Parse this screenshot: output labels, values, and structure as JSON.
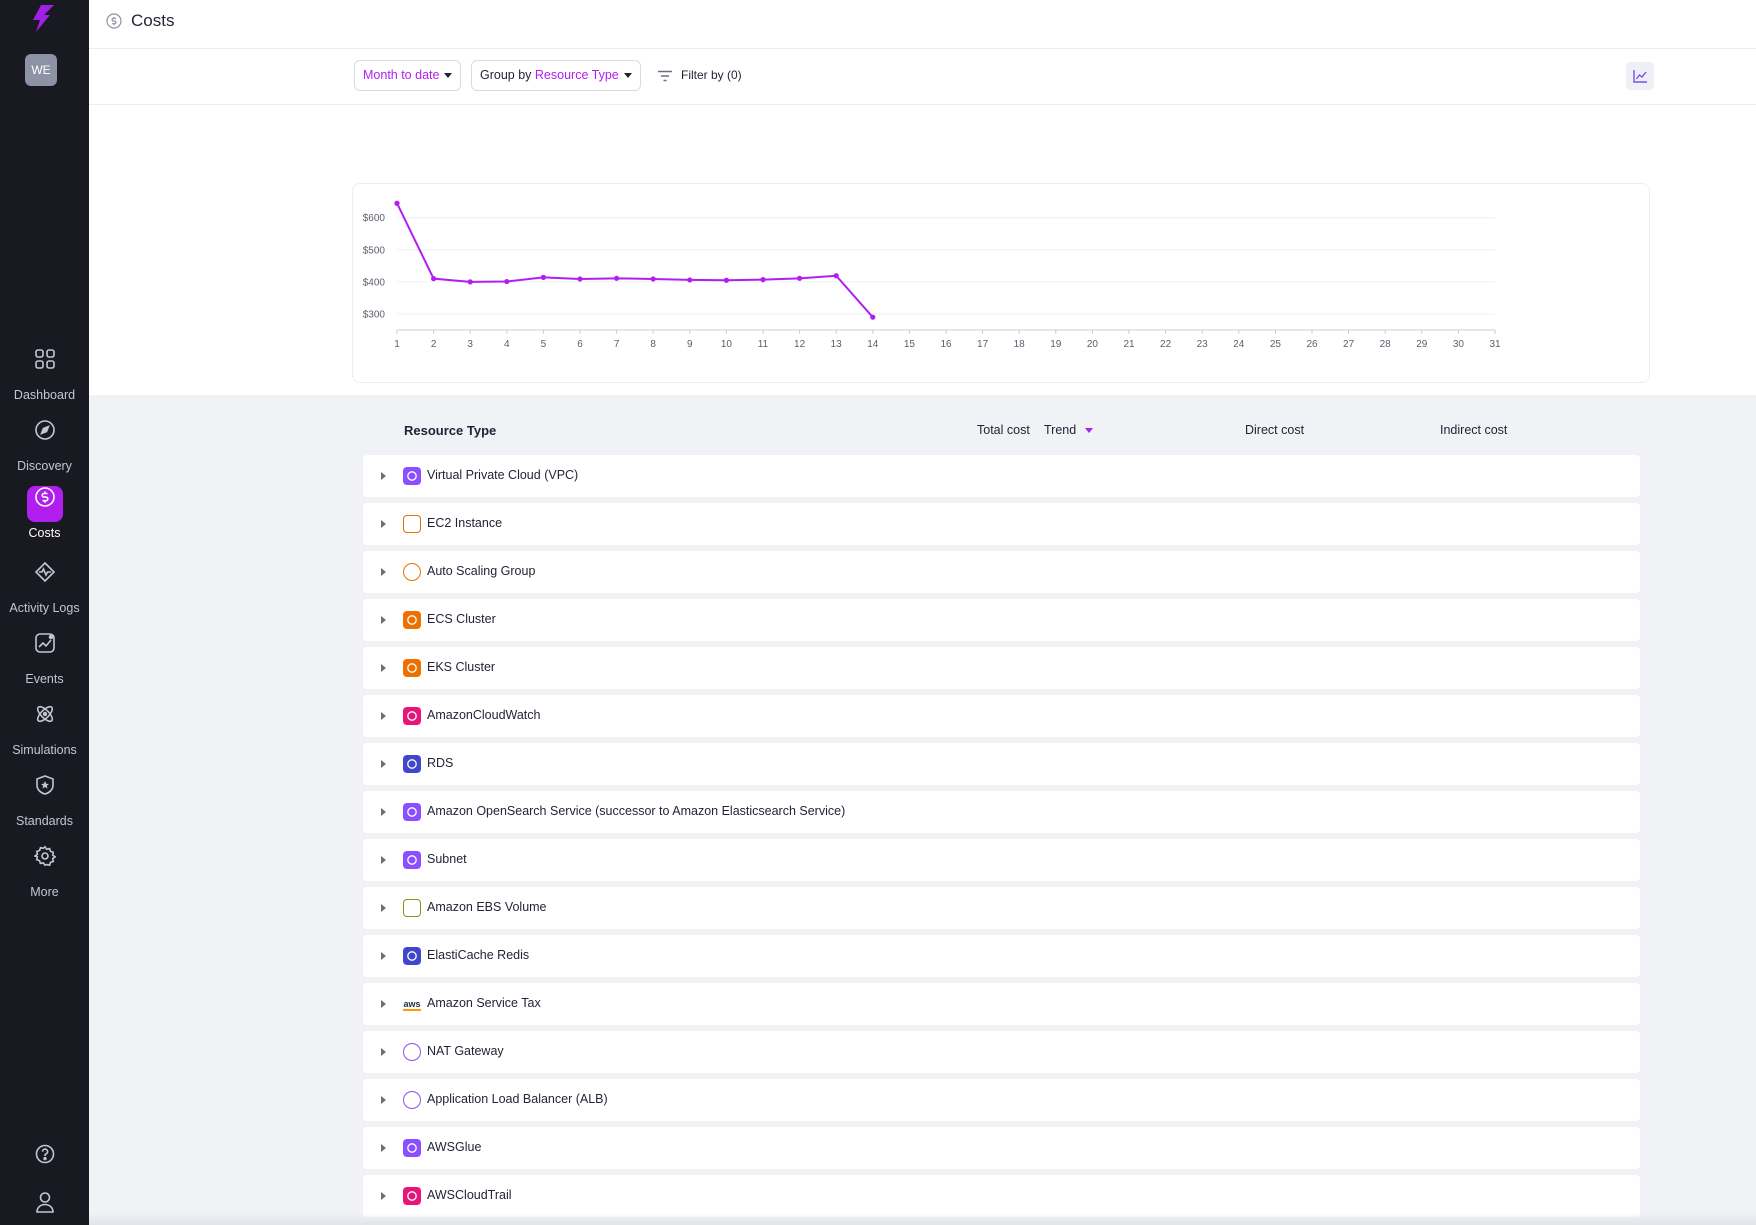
{
  "sidebar": {
    "avatar": "WE",
    "nav": [
      {
        "label": "Dashboard",
        "icon": "dashboard-icon"
      },
      {
        "label": "Discovery",
        "icon": "compass-icon"
      },
      {
        "label": "Costs",
        "icon": "dollar-icon",
        "active": true
      },
      {
        "label": "Activity Logs",
        "icon": "activity-icon"
      },
      {
        "label": "Events",
        "icon": "events-icon"
      },
      {
        "label": "Simulations",
        "icon": "atom-icon"
      },
      {
        "label": "Standards",
        "icon": "shield-icon"
      },
      {
        "label": "More",
        "icon": "gear-icon"
      }
    ]
  },
  "header": {
    "title": "Costs"
  },
  "toolbar": {
    "date_range": "Month to date",
    "group_by_prefix": "Group by",
    "group_by_value": "Resource Type",
    "filter_label": "Filter by (0)"
  },
  "chart_data": {
    "type": "line",
    "x": [
      1,
      2,
      3,
      4,
      5,
      6,
      7,
      8,
      9,
      10,
      11,
      12,
      13,
      14
    ],
    "y": [
      645,
      410,
      400,
      401,
      414,
      409,
      411,
      409,
      406,
      405,
      407,
      411,
      419,
      290
    ],
    "x_ticks": [
      1,
      2,
      3,
      4,
      5,
      6,
      7,
      8,
      9,
      10,
      11,
      12,
      13,
      14,
      15,
      16,
      17,
      18,
      19,
      20,
      21,
      22,
      23,
      24,
      25,
      26,
      27,
      28,
      29,
      30,
      31
    ],
    "y_ticks": [
      "$300",
      "$400",
      "$500",
      "$600"
    ],
    "y_tick_values": [
      300,
      400,
      500,
      600
    ],
    "xlim": [
      1,
      31
    ],
    "ylim": [
      250,
      680
    ],
    "grid": true,
    "color": "#b11ef0"
  },
  "table": {
    "headers": {
      "resource_type": "Resource Type",
      "total_cost": "Total cost",
      "trend": "Trend",
      "direct_cost": "Direct cost",
      "indirect_cost": "Indirect cost"
    },
    "rows": [
      {
        "name": "Virtual Private Cloud (VPC)",
        "icon": "vpc-icon",
        "color": "#8c4fff"
      },
      {
        "name": "EC2 Instance",
        "icon": "ec2-icon",
        "color": "#ed7100"
      },
      {
        "name": "Auto Scaling Group",
        "icon": "autoscaling-icon",
        "color": "#ed7100"
      },
      {
        "name": "ECS Cluster",
        "icon": "ecs-icon",
        "color": "#ed7100"
      },
      {
        "name": "EKS Cluster",
        "icon": "eks-icon",
        "color": "#ed7100"
      },
      {
        "name": "AmazonCloudWatch",
        "icon": "cloudwatch-icon",
        "color": "#e7157b"
      },
      {
        "name": "RDS",
        "icon": "rds-icon",
        "color": "#3f48cc"
      },
      {
        "name": "Amazon OpenSearch Service (successor to Amazon Elasticsearch Service)",
        "icon": "opensearch-icon",
        "color": "#8c4fff"
      },
      {
        "name": "Subnet",
        "icon": "subnet-icon",
        "color": "#8c4fff"
      },
      {
        "name": "Amazon EBS Volume",
        "icon": "ebs-icon",
        "color": "#7aa116"
      },
      {
        "name": "ElastiCache Redis",
        "icon": "elasticache-icon",
        "color": "#3f48cc"
      },
      {
        "name": "Amazon Service Tax",
        "icon": "aws-icon",
        "color": "#232f3e"
      },
      {
        "name": "NAT Gateway",
        "icon": "nat-gateway-icon",
        "color": "#8c4fff"
      },
      {
        "name": "Application Load Balancer (ALB)",
        "icon": "alb-icon",
        "color": "#8c4fff"
      },
      {
        "name": "AWSGlue",
        "icon": "glue-icon",
        "color": "#8c4fff"
      },
      {
        "name": "AWSCloudTrail",
        "icon": "cloudtrail-icon",
        "color": "#e7157b"
      }
    ]
  }
}
